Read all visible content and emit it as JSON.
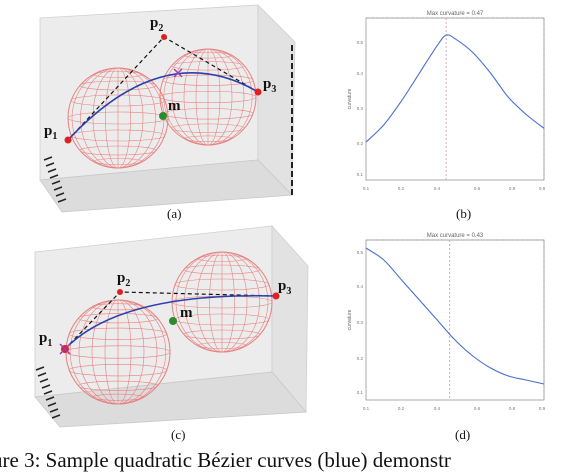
{
  "figure": {
    "caption": "ure 3: Sample quadratic Bézier curves (blue) demonstr",
    "panels": [
      {
        "id": "a",
        "label": "(a)",
        "points": {
          "p1": "p",
          "p1_sub": "1",
          "p2": "p",
          "p2_sub": "2",
          "p3": "p",
          "p3_sub": "3",
          "m": "m"
        }
      },
      {
        "id": "b",
        "label": "(b)",
        "title": "Max curvature = 0.47",
        "ylabel": "curvature",
        "xticks": [
          "0.1",
          "0.2",
          "0.4",
          "0.6",
          "0.8",
          "0.9"
        ],
        "yticks": [
          "0.5",
          "0.4",
          "0.3",
          "0.2",
          "0.1"
        ]
      },
      {
        "id": "c",
        "label": "(c)",
        "points": {
          "p1": "p",
          "p1_sub": "1",
          "p2": "p",
          "p2_sub": "2",
          "p3": "p",
          "p3_sub": "3",
          "m": "m"
        }
      },
      {
        "id": "d",
        "label": "(d)",
        "title": "Max curvature = 0.43",
        "ylabel": "curvature",
        "xticks": [
          "0.1",
          "0.2",
          "0.4",
          "0.6",
          "0.8",
          "0.9"
        ],
        "yticks": [
          "0.5",
          "0.4",
          "0.3",
          "0.2",
          "0.1"
        ]
      }
    ]
  },
  "chart_data": [
    {
      "type": "line",
      "panel": "b",
      "title": "Max curvature = 0.47",
      "ylabel": "curvature",
      "x": [
        0.0,
        0.1,
        0.2,
        0.3,
        0.4,
        0.45,
        0.5,
        0.6,
        0.7,
        0.8,
        0.9,
        1.0
      ],
      "series": [
        {
          "values": [
            0.16,
            0.21,
            0.28,
            0.36,
            0.44,
            0.47,
            0.46,
            0.42,
            0.36,
            0.29,
            0.24,
            0.2
          ]
        }
      ],
      "ylim": [
        0.05,
        0.52
      ],
      "marker_x": 0.45,
      "colors": {
        "curve": "#4a6fd0",
        "marker": "#d9a0a0"
      }
    },
    {
      "type": "line",
      "panel": "d",
      "title": "Max curvature = 0.43",
      "ylabel": "curvature",
      "x": [
        0.0,
        0.1,
        0.2,
        0.3,
        0.4,
        0.5,
        0.6,
        0.7,
        0.8,
        0.9,
        1.0
      ],
      "series": [
        {
          "values": [
            0.43,
            0.4,
            0.35,
            0.3,
            0.25,
            0.2,
            0.16,
            0.13,
            0.11,
            0.1,
            0.09
          ]
        }
      ],
      "ylim": [
        0.05,
        0.45
      ],
      "marker_x": 0.47,
      "colors": {
        "curve": "#4a6fd0",
        "marker": "#d9a0a0"
      }
    }
  ]
}
